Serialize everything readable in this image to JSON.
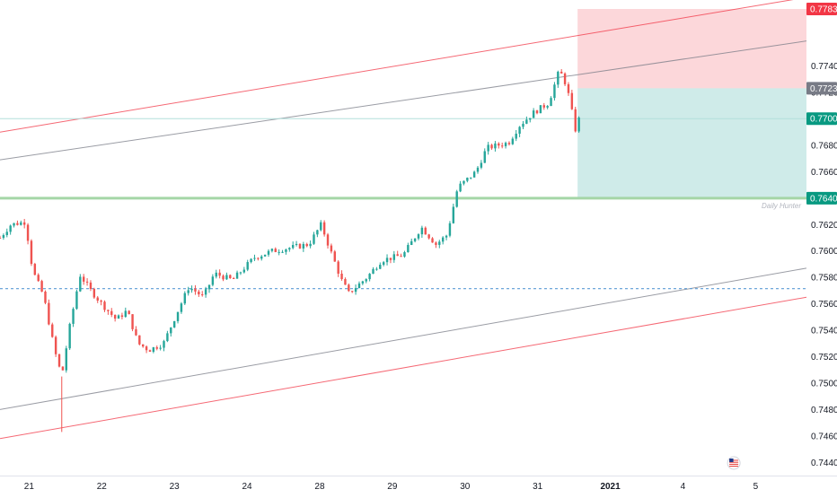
{
  "chart_data": {
    "type": "candlestick",
    "currency": "USD",
    "y_axis": {
      "min": 0.743,
      "max": 0.779,
      "ticks": [
        "0.77400",
        "0.77200",
        "0.77000",
        "0.76800",
        "0.76600",
        "0.76400",
        "0.76200",
        "0.76000",
        "0.75800",
        "0.75600",
        "0.75400",
        "0.75200",
        "0.75000",
        "0.74800",
        "0.74600",
        "0.74400"
      ]
    },
    "x_axis": {
      "ticks": [
        {
          "label": "21",
          "pos": 0.6
        },
        {
          "label": "22",
          "pos": 1.6
        },
        {
          "label": "23",
          "pos": 2.6
        },
        {
          "label": "24",
          "pos": 3.6
        },
        {
          "label": "28",
          "pos": 4.6
        },
        {
          "label": "29",
          "pos": 5.6
        },
        {
          "label": "30",
          "pos": 6.6
        },
        {
          "label": "31",
          "pos": 7.6
        },
        {
          "label": "2021",
          "pos": 8.6
        },
        {
          "label": "4",
          "pos": 9.6
        },
        {
          "label": "5",
          "pos": 10.6
        }
      ],
      "range": [
        0.2,
        11.3
      ]
    },
    "price_tags": [
      {
        "label": "0.77832",
        "value": 0.77832,
        "color": "#f23645"
      },
      {
        "label": "0.77232",
        "value": 0.77232,
        "color": "#787b86"
      },
      {
        "label": "0.77002",
        "value": 0.77002,
        "color": "#089981"
      },
      {
        "label": "0.76400",
        "value": 0.764,
        "color": "#089981"
      }
    ],
    "horizontal_levels": [
      {
        "value": 0.764,
        "color": "#a5d6a7",
        "style": "solid",
        "label": "Daily Hunter"
      },
      {
        "value": 0.77002,
        "color": "#b2dfdb",
        "style": "solid"
      },
      {
        "value": 0.75715,
        "color": "#5b9bd5",
        "style": "dashed"
      }
    ],
    "position": {
      "entry": 0.77232,
      "stop": 0.77832,
      "target": 0.764,
      "x_start": 8.15,
      "x_end": 11.3,
      "risk_color": "#f23645",
      "reward_color": "#26a69a"
    },
    "channels": [
      {
        "color": "#f23645",
        "points": [
          [
            0.2,
            0.769
          ],
          [
            11.3,
            0.7792
          ]
        ]
      },
      {
        "color": "#f23645",
        "points": [
          [
            0.2,
            0.7458
          ],
          [
            11.3,
            0.7565
          ]
        ]
      },
      {
        "color": "#787b86",
        "points": [
          [
            0.2,
            0.7669
          ],
          [
            11.3,
            0.7759
          ]
        ]
      },
      {
        "color": "#787b86",
        "points": [
          [
            0.2,
            0.748
          ],
          [
            11.3,
            0.7587
          ]
        ]
      }
    ],
    "keyframes": [
      [
        0.2,
        0.761
      ],
      [
        0.35,
        0.762
      ],
      [
        0.55,
        0.7622
      ],
      [
        0.65,
        0.7585
      ],
      [
        0.8,
        0.7566
      ],
      [
        0.95,
        0.7525
      ],
      [
        1.05,
        0.7505
      ],
      [
        1.15,
        0.754
      ],
      [
        1.3,
        0.7582
      ],
      [
        1.45,
        0.757
      ],
      [
        1.6,
        0.756
      ],
      [
        1.8,
        0.7548
      ],
      [
        1.95,
        0.7555
      ],
      [
        2.1,
        0.753
      ],
      [
        2.25,
        0.7525
      ],
      [
        2.45,
        0.753
      ],
      [
        2.65,
        0.7555
      ],
      [
        2.8,
        0.7573
      ],
      [
        3.0,
        0.7565
      ],
      [
        3.15,
        0.7583
      ],
      [
        3.4,
        0.7578
      ],
      [
        3.7,
        0.7595
      ],
      [
        3.95,
        0.76
      ],
      [
        4.15,
        0.7602
      ],
      [
        4.45,
        0.7605
      ],
      [
        4.62,
        0.762
      ],
      [
        4.75,
        0.76
      ],
      [
        4.9,
        0.7578
      ],
      [
        5.0,
        0.7568
      ],
      [
        5.25,
        0.758
      ],
      [
        5.45,
        0.7593
      ],
      [
        5.75,
        0.7597
      ],
      [
        6.0,
        0.7618
      ],
      [
        6.2,
        0.7605
      ],
      [
        6.35,
        0.7612
      ],
      [
        6.5,
        0.7648
      ],
      [
        6.75,
        0.766
      ],
      [
        6.9,
        0.7678
      ],
      [
        7.2,
        0.7682
      ],
      [
        7.35,
        0.7695
      ],
      [
        7.55,
        0.7705
      ],
      [
        7.75,
        0.7712
      ],
      [
        7.9,
        0.7737
      ],
      [
        8.0,
        0.7725
      ],
      [
        8.12,
        0.7692
      ],
      [
        8.17,
        0.77
      ]
    ]
  }
}
